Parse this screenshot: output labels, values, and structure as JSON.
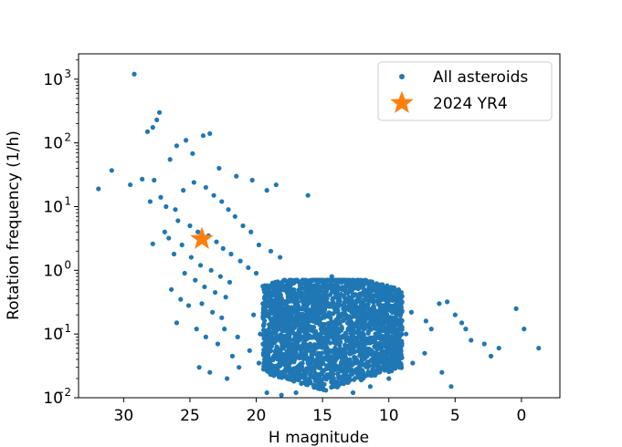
{
  "chart_data": {
    "type": "scatter",
    "title": "",
    "xlabel": "H magnitude",
    "ylabel": "Rotation frequency (1/h)",
    "xlim": [
      33.4,
      -2.9
    ],
    "ylim": [
      0.01,
      2500
    ],
    "xscale": "linear",
    "yscale": "log",
    "x_axis_reversed": true,
    "x_ticks": [
      30,
      25,
      20,
      15,
      10,
      5,
      0
    ],
    "x_tick_labels": [
      "30",
      "25",
      "20",
      "15",
      "10",
      "5",
      "0"
    ],
    "y_ticks": [
      0.01,
      0.1,
      1,
      10,
      100,
      1000
    ],
    "y_tick_labels": [
      {
        "base": "10",
        "exp": "−2"
      },
      {
        "base": "10",
        "exp": "−1"
      },
      {
        "base": "10",
        "exp": "0"
      },
      {
        "base": "10",
        "exp": "1"
      },
      {
        "base": "10",
        "exp": "2"
      },
      {
        "base": "10",
        "exp": "3"
      }
    ],
    "grid": false,
    "legend_position": "top-right",
    "series": [
      {
        "name": "All asteroids",
        "marker": "circle",
        "color": "#1f77b4",
        "points": [
          [
            29.2,
            1200
          ],
          [
            27.3,
            300
          ],
          [
            27.5,
            230
          ],
          [
            27.8,
            175
          ],
          [
            28.2,
            150
          ],
          [
            26.5,
            55
          ],
          [
            24.8,
            68
          ],
          [
            24.0,
            130
          ],
          [
            25.3,
            110
          ],
          [
            26.0,
            90
          ],
          [
            23.5,
            140
          ],
          [
            22.8,
            40
          ],
          [
            21.5,
            30
          ],
          [
            20.3,
            26
          ],
          [
            19.2,
            18
          ],
          [
            18.5,
            22
          ],
          [
            16.1,
            15
          ],
          [
            31.9,
            19
          ],
          [
            30.9,
            37
          ],
          [
            29.5,
            22
          ],
          [
            28.6,
            27
          ],
          [
            27.7,
            26
          ],
          [
            27.2,
            14
          ],
          [
            26.8,
            10
          ],
          [
            28.0,
            12
          ],
          [
            26.1,
            9
          ],
          [
            25.5,
            18
          ],
          [
            24.7,
            24
          ],
          [
            23.8,
            20
          ],
          [
            23.2,
            15
          ],
          [
            22.6,
            12
          ],
          [
            22.1,
            9
          ],
          [
            21.6,
            7
          ],
          [
            21.0,
            5
          ],
          [
            20.4,
            4
          ],
          [
            19.8,
            2.5
          ],
          [
            18.9,
            2.0
          ],
          [
            18.2,
            1.6
          ],
          [
            25.9,
            6
          ],
          [
            25.0,
            5
          ],
          [
            24.4,
            4
          ],
          [
            23.6,
            3.5
          ],
          [
            23.0,
            2.8
          ],
          [
            22.5,
            2.2
          ],
          [
            21.9,
            1.8
          ],
          [
            21.2,
            1.4
          ],
          [
            20.6,
            1.1
          ],
          [
            20.0,
            0.9
          ],
          [
            27.8,
            2.6
          ],
          [
            26.6,
            3.2
          ],
          [
            26.9,
            4.0
          ],
          [
            25.6,
            2.5
          ],
          [
            24.9,
            1.6
          ],
          [
            24.2,
            1.2
          ],
          [
            23.4,
            1.0
          ],
          [
            22.7,
            0.8
          ],
          [
            22.0,
            0.65
          ],
          [
            25.4,
            0.9
          ],
          [
            24.6,
            0.7
          ],
          [
            23.9,
            0.55
          ],
          [
            23.1,
            0.45
          ],
          [
            22.3,
            0.38
          ],
          [
            24.1,
            0.3
          ],
          [
            23.3,
            0.22
          ],
          [
            22.6,
            0.18
          ],
          [
            26.2,
            1.8
          ],
          [
            26.4,
            0.5
          ],
          [
            25.7,
            0.35
          ],
          [
            25.1,
            0.28
          ],
          [
            26.0,
            0.15
          ],
          [
            24.5,
            0.12
          ],
          [
            23.8,
            0.09
          ],
          [
            22.9,
            0.07
          ],
          [
            24.3,
            0.03
          ],
          [
            23.5,
            0.025
          ],
          [
            22.2,
            0.02
          ],
          [
            21.3,
            0.03
          ],
          [
            19.2,
            0.012
          ],
          [
            18.1,
            0.011
          ],
          [
            17.0,
            0.012
          ],
          [
            20.5,
            0.055
          ],
          [
            19.8,
            0.035
          ],
          [
            21.8,
            0.045
          ],
          [
            22.4,
            0.12
          ],
          [
            21.4,
            0.09
          ],
          [
            20.2,
            0.2
          ],
          [
            19.5,
            0.3
          ],
          [
            18.8,
            0.45
          ],
          [
            17.9,
            0.7
          ],
          [
            17.3,
            0.5
          ],
          [
            16.6,
            0.6
          ],
          [
            15.2,
            0.55
          ],
          [
            14.3,
            0.8
          ],
          [
            13.1,
            0.6
          ],
          [
            12.3,
            0.4
          ],
          [
            11.2,
            0.32
          ],
          [
            10.4,
            0.28
          ],
          [
            9.4,
            0.25
          ],
          [
            8.3,
            0.22
          ],
          [
            7.2,
            0.16
          ],
          [
            6.2,
            0.3
          ],
          [
            5.6,
            0.32
          ],
          [
            5.0,
            0.2
          ],
          [
            4.2,
            0.12
          ],
          [
            3.8,
            0.08
          ],
          [
            2.8,
            0.07
          ],
          [
            2.3,
            0.045
          ],
          [
            1.7,
            0.06
          ],
          [
            0.4,
            0.25
          ],
          [
            -0.2,
            0.12
          ],
          [
            -1.3,
            0.06
          ],
          [
            4.5,
            0.15
          ],
          [
            6.8,
            0.12
          ],
          [
            8.7,
            0.1
          ],
          [
            10.6,
            0.09
          ],
          [
            12.0,
            0.06
          ],
          [
            13.5,
            0.05
          ],
          [
            14.6,
            0.04
          ],
          [
            15.7,
            0.03
          ],
          [
            16.8,
            0.025
          ],
          [
            9.5,
            0.04
          ],
          [
            8.2,
            0.035
          ],
          [
            7.3,
            0.05
          ],
          [
            6.0,
            0.025
          ],
          [
            5.3,
            0.015
          ],
          [
            10.0,
            0.02
          ],
          [
            11.4,
            0.015
          ],
          [
            12.7,
            0.012
          ],
          [
            16.2,
            0.018
          ],
          [
            19.7,
            0.1
          ],
          [
            18.6,
            0.08
          ],
          [
            17.6,
            0.2
          ],
          [
            16.4,
            0.15
          ],
          [
            15.1,
            0.12
          ],
          [
            14.0,
            0.1
          ],
          [
            12.9,
            0.08
          ],
          [
            11.8,
            0.14
          ],
          [
            10.9,
            0.18
          ]
        ],
        "dense_region": {
          "h_range": [
            19.5,
            9.0
          ],
          "freq_range": [
            0.01,
            0.7
          ],
          "center_h": 14.8,
          "center_freq": 0.12
        }
      },
      {
        "name": "2024 YR4",
        "marker": "star",
        "color": "#ff7f0e",
        "points": [
          [
            24.1,
            3.1
          ]
        ]
      }
    ]
  }
}
